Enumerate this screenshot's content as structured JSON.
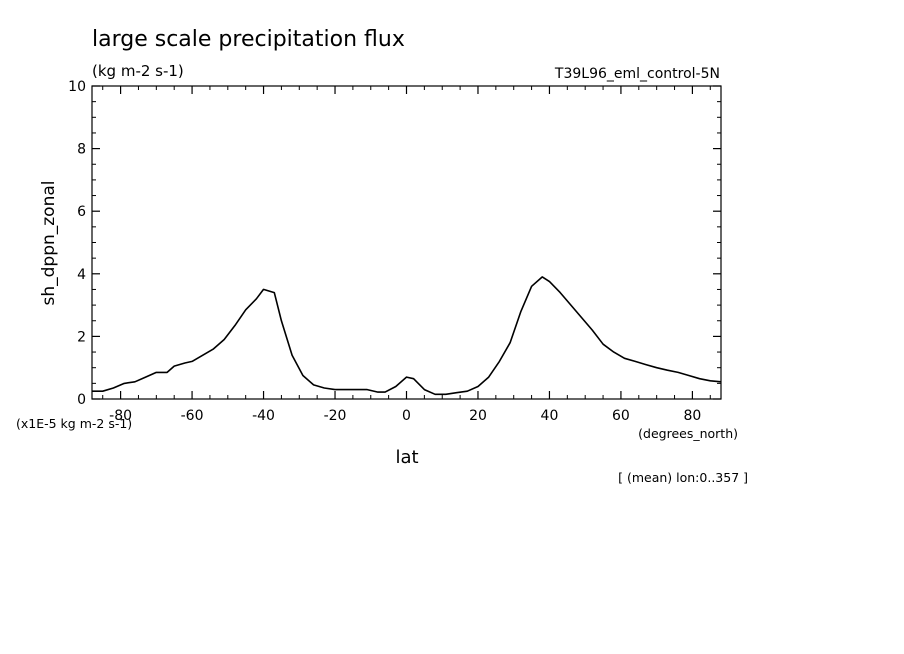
{
  "chart_data": {
    "type": "line",
    "title": "large scale precipitation flux",
    "subtitle": "(kg m-2 s-1)",
    "dataset": "T39L96_eml_control-5N",
    "xlabel": "lat",
    "xunits": "(degrees_north)",
    "ylabel": "sh_dppn_zonal",
    "yscale_note": "(x1E-5 kg m-2 s-1)",
    "footnote": "[ (mean) lon:0..357 ]",
    "xlim": [
      -88,
      88
    ],
    "ylim": [
      0,
      10
    ],
    "x_ticks": [
      -80,
      -60,
      -40,
      -20,
      0,
      20,
      40,
      60,
      80
    ],
    "x_tick_labels": [
      "-80",
      "-60",
      "-40",
      "-20",
      "0",
      "20",
      "40",
      "60",
      "80"
    ],
    "y_ticks": [
      0,
      2,
      4,
      6,
      8,
      10
    ],
    "y_tick_labels": [
      "0",
      "2",
      "4",
      "6",
      "8",
      "10"
    ],
    "grid": false,
    "series": [
      {
        "color": "#000000",
        "x": [
          -88,
          -85,
          -82,
          -79,
          -76,
          -73,
          -70,
          -67,
          -65,
          -62,
          -60,
          -57,
          -54,
          -51,
          -48,
          -45,
          -42,
          -40,
          -37,
          -35,
          -32,
          -29,
          -26,
          -23,
          -20,
          -17,
          -14,
          -11,
          -8,
          -6,
          -3,
          0,
          2,
          5,
          8,
          11,
          14,
          17,
          20,
          23,
          26,
          29,
          32,
          35,
          38,
          40,
          43,
          46,
          49,
          52,
          55,
          58,
          61,
          64,
          67,
          70,
          73,
          76,
          79,
          82,
          85,
          88
        ],
        "y": [
          0.25,
          0.25,
          0.35,
          0.5,
          0.55,
          0.7,
          0.85,
          0.85,
          1.05,
          1.15,
          1.2,
          1.4,
          1.6,
          1.9,
          2.35,
          2.85,
          3.2,
          3.5,
          3.4,
          2.5,
          1.4,
          0.75,
          0.45,
          0.35,
          0.3,
          0.3,
          0.3,
          0.3,
          0.22,
          0.22,
          0.4,
          0.7,
          0.65,
          0.3,
          0.15,
          0.15,
          0.2,
          0.25,
          0.4,
          0.7,
          1.2,
          1.8,
          2.8,
          3.6,
          3.9,
          3.75,
          3.4,
          3.0,
          2.6,
          2.2,
          1.75,
          1.5,
          1.3,
          1.2,
          1.1,
          1.0,
          0.92,
          0.85,
          0.75,
          0.65,
          0.58,
          0.55
        ]
      }
    ]
  }
}
